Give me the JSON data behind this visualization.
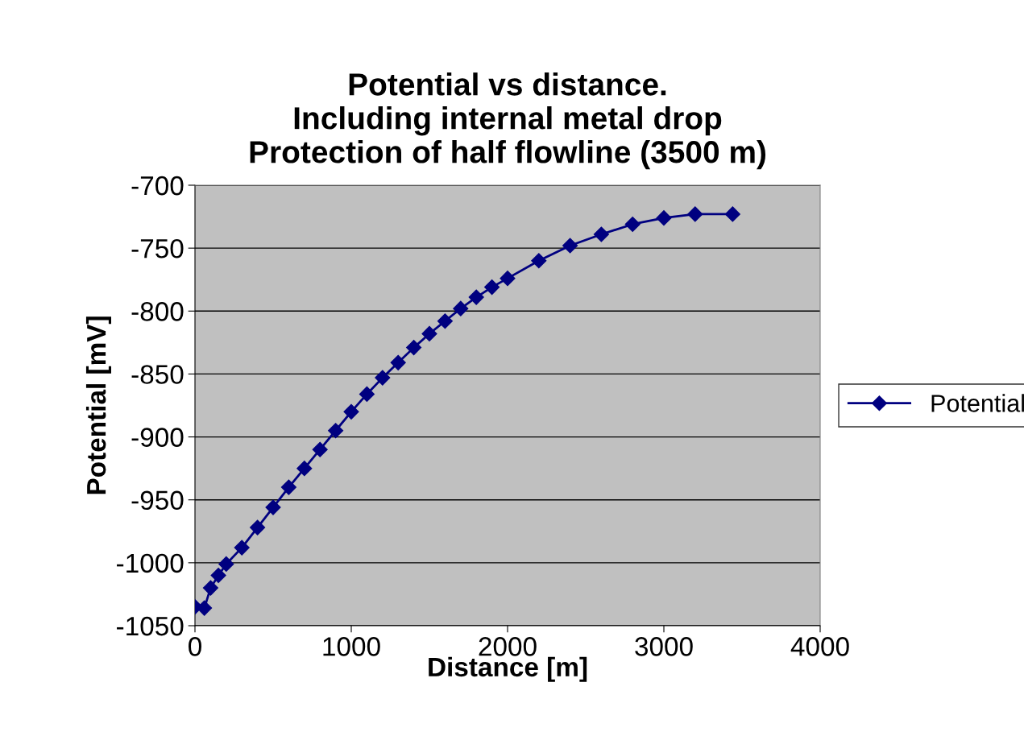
{
  "chart_data": {
    "type": "line",
    "title": "Potential vs distance.\nIncluding internal metal drop\nProtection of half flowline (3500 m)",
    "xlabel": "Distance [m]",
    "ylabel": "Potential [mV]",
    "x": [
      0,
      60,
      100,
      150,
      200,
      300,
      400,
      500,
      600,
      700,
      800,
      900,
      1000,
      1100,
      1200,
      1300,
      1400,
      1500,
      1600,
      1700,
      1800,
      1900,
      2000,
      2200,
      2400,
      2600,
      2800,
      3000,
      3200,
      3440
    ],
    "series": [
      {
        "name": "Potential",
        "color": "#000080",
        "values": [
          -1035,
          -1036,
          -1020,
          -1010,
          -1001,
          -988,
          -972,
          -956,
          -940,
          -925,
          -910,
          -895,
          -880,
          -866,
          -853,
          -841,
          -829,
          -818,
          -808,
          -798,
          -789,
          -781,
          -774,
          -760,
          -748,
          -739,
          -731,
          -726,
          -723,
          -723
        ]
      }
    ],
    "xlim": [
      0,
      4000
    ],
    "xticks": [
      0,
      1000,
      2000,
      3000,
      4000
    ],
    "ylim": [
      -1050,
      -700
    ],
    "yticks": [
      -1050,
      -1000,
      -950,
      -900,
      -850,
      -800,
      -750,
      -700
    ],
    "grid": "y",
    "legend": "right",
    "marker": "diamond",
    "line_style": "solid"
  }
}
